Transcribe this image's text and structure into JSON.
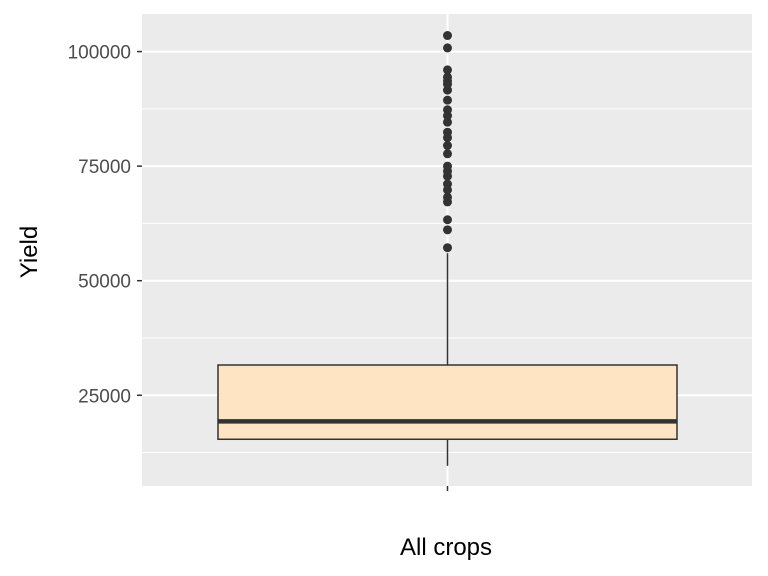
{
  "chart_data": {
    "type": "box",
    "title": "",
    "xlabel": "All crops",
    "ylabel": "Yield",
    "categories": [
      ""
    ],
    "ylim": [
      5200,
      108200
    ],
    "yticks": [
      25000,
      50000,
      75000,
      100000
    ],
    "ytick_labels": [
      "25000",
      "50000",
      "75000",
      "100000"
    ],
    "y_minor_gridlines": [
      12500,
      37500,
      62500,
      87500
    ],
    "boxes": [
      {
        "category": "",
        "whisker_low": 9600,
        "q1": 15400,
        "median": 19300,
        "q3": 31600,
        "whisker_high": 56000,
        "outliers": [
          57200,
          61100,
          63300,
          67200,
          68200,
          69800,
          71100,
          72800,
          73900,
          75000,
          77700,
          79500,
          81200,
          82400,
          84600,
          86000,
          87300,
          89400,
          91600,
          92900,
          93600,
          94400,
          96000,
          100800,
          103500
        ]
      }
    ],
    "colors": {
      "panel_background": "#ebebeb",
      "gridline": "#ffffff",
      "box_fill": "#ffe4c4",
      "box_line": "#333333",
      "outlier": "#333333"
    },
    "grid": true,
    "legend": "none"
  }
}
